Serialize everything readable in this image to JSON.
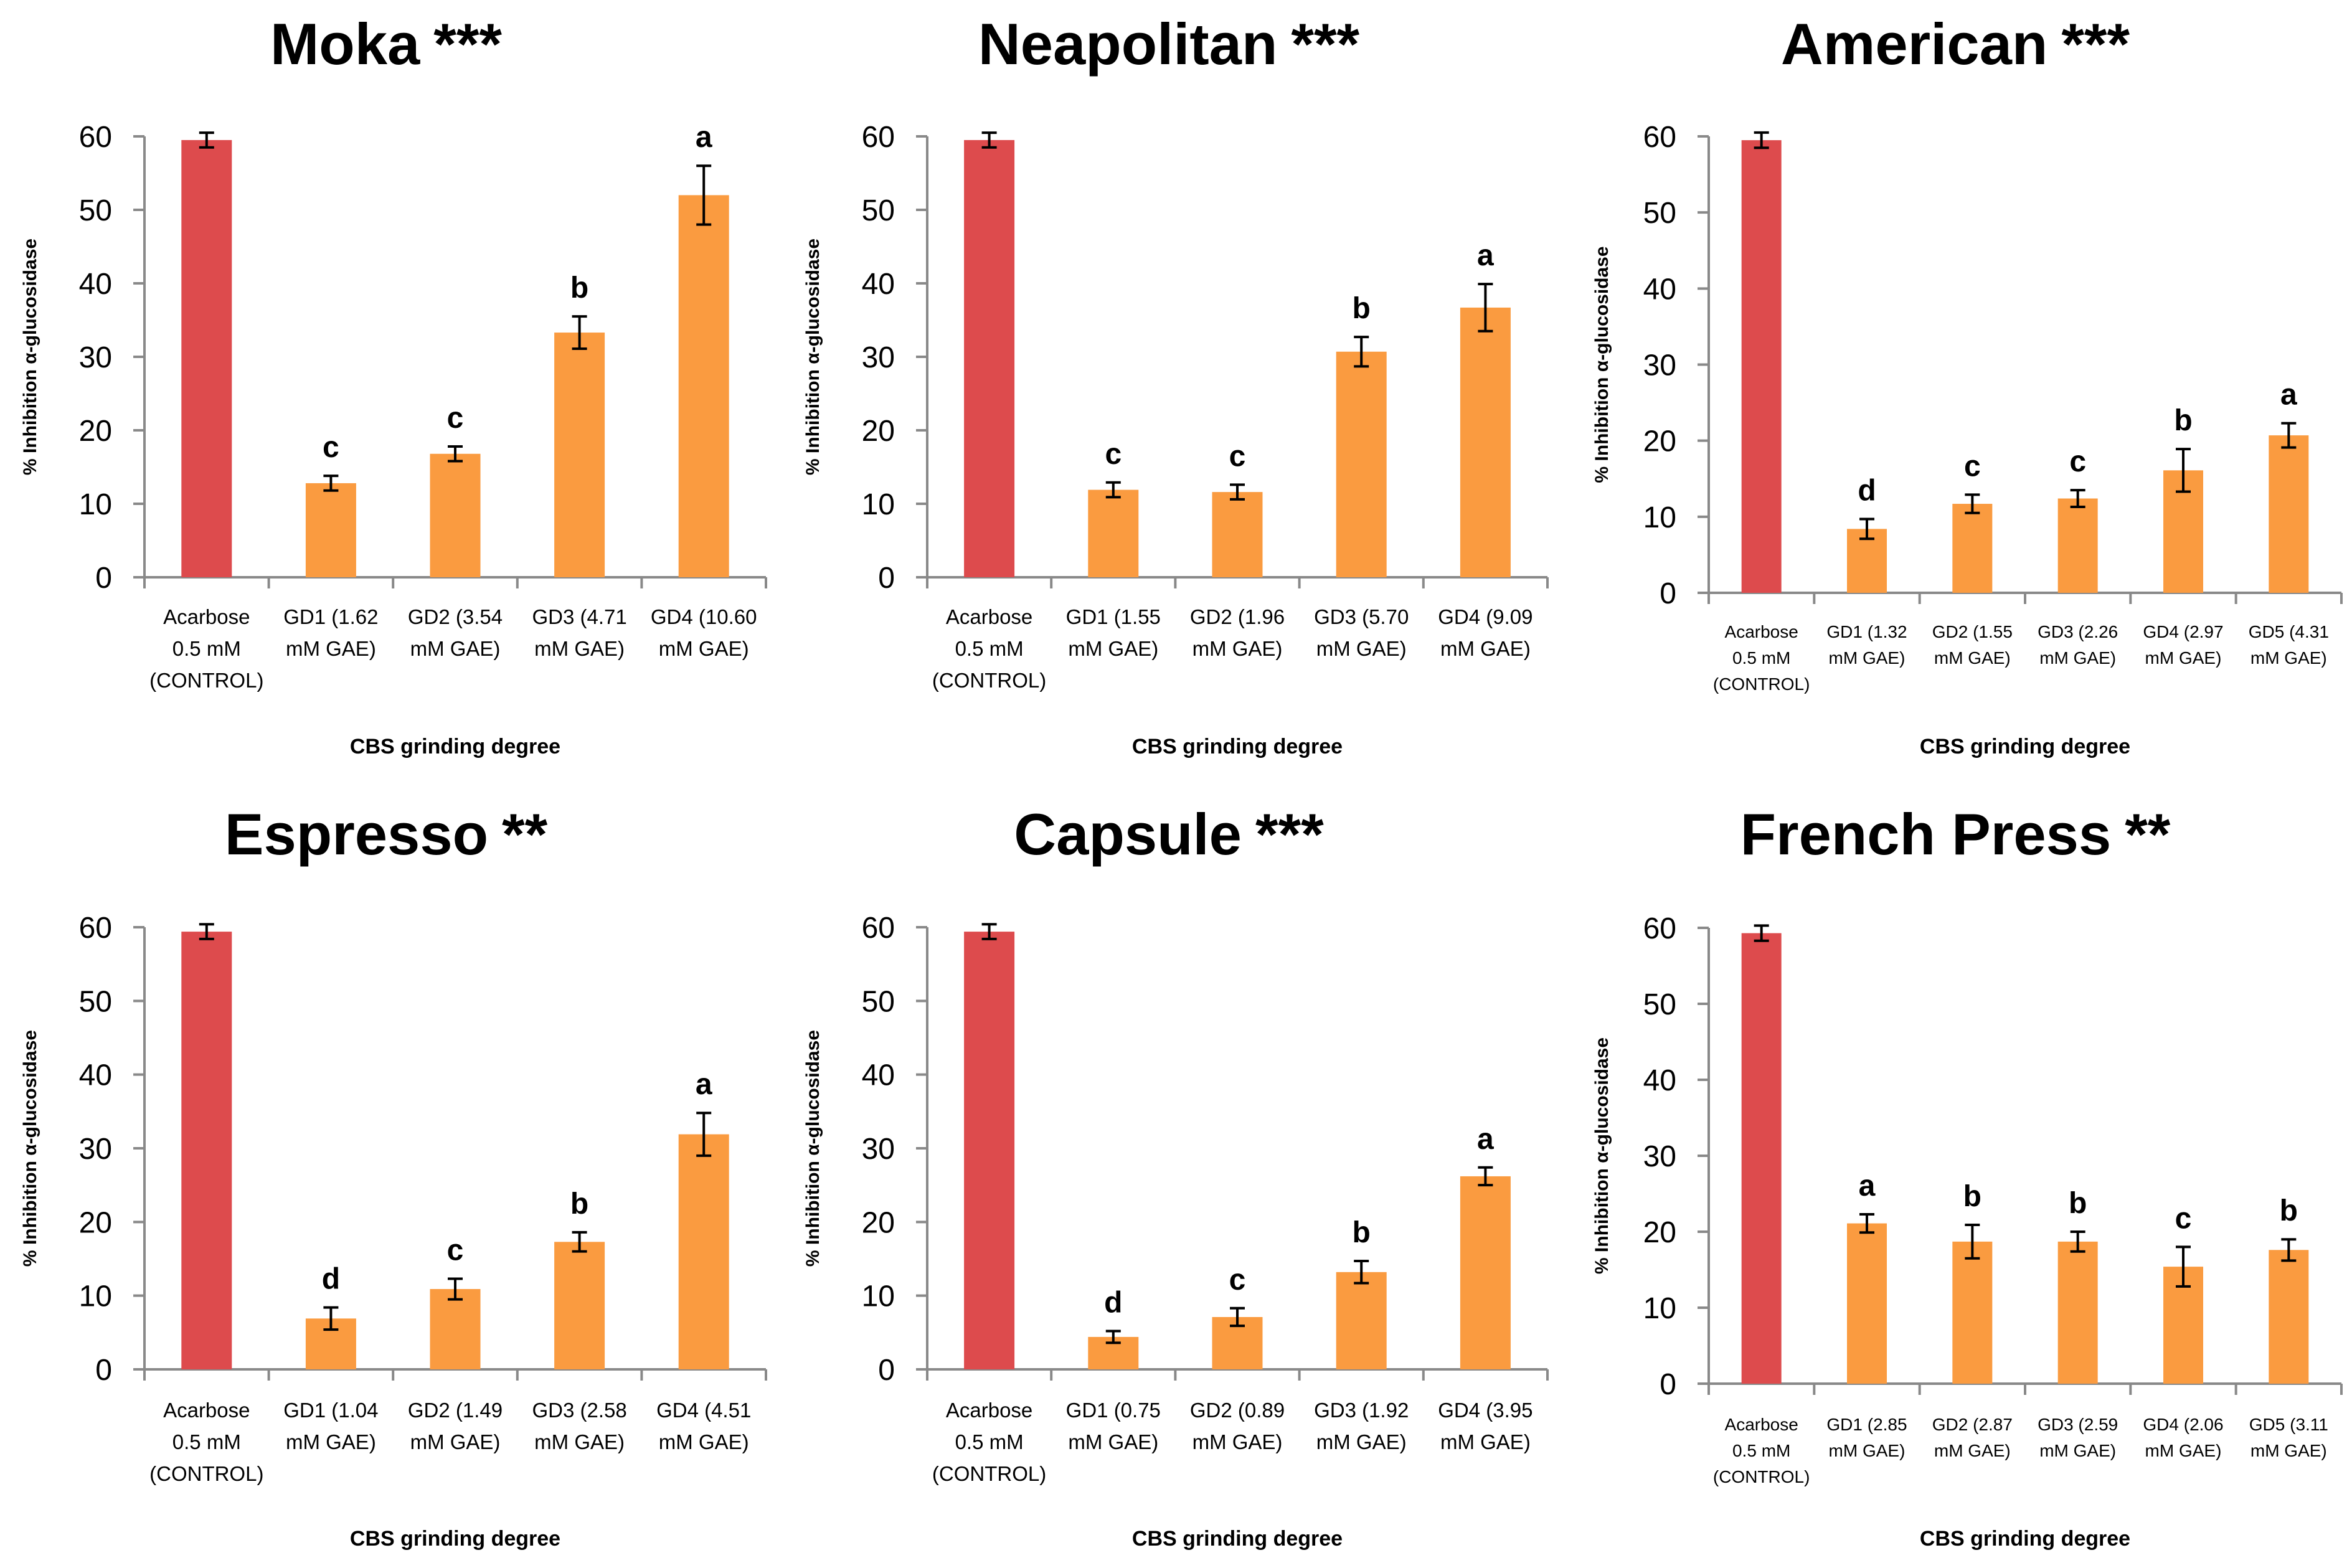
{
  "colors": {
    "control": "#dd4b4d",
    "sample": "#fa9b40",
    "axis": "#898989",
    "text": "#000000"
  },
  "chart_data": [
    {
      "type": "bar",
      "title": "Moka",
      "significance": "***",
      "xlabel": "CBS grinding  degree",
      "ylabel": "% Inhibition α-glucosidase",
      "ylim": [
        0,
        60
      ],
      "yticks": [
        0,
        10,
        20,
        30,
        40,
        50,
        60
      ],
      "categories": [
        [
          "Acarbose",
          "0.5 mM",
          "(CONTROL)"
        ],
        [
          "GD1 (1.62",
          "mM GAE)"
        ],
        [
          "GD2 (3.54",
          "mM GAE)"
        ],
        [
          "GD3 (4.71",
          "mM GAE)"
        ],
        [
          "GD4 (10.60",
          "mM GAE)"
        ]
      ],
      "values": [
        59.5,
        12.8,
        16.8,
        33.3,
        52.0
      ],
      "errors": [
        1.0,
        1.0,
        1.0,
        2.2,
        4.0
      ],
      "letters": [
        "",
        "c",
        "c",
        "b",
        "a"
      ],
      "legend": "none",
      "grid": false
    },
    {
      "type": "bar",
      "title": "Neapolitan",
      "significance": "***",
      "xlabel": "CBS grinding  degree",
      "ylabel": "% Inhibition α-glucosidase",
      "ylim": [
        0,
        60
      ],
      "yticks": [
        0,
        10,
        20,
        30,
        40,
        50,
        60
      ],
      "categories": [
        [
          "Acarbose",
          "0.5 mM",
          "(CONTROL)"
        ],
        [
          "GD1 (1.55",
          "mM GAE)"
        ],
        [
          "GD2 (1.96",
          "mM GAE)"
        ],
        [
          "GD3 (5.70",
          "mM GAE)"
        ],
        [
          "GD4 (9.09",
          "mM GAE)"
        ]
      ],
      "values": [
        59.5,
        11.9,
        11.6,
        30.7,
        36.7
      ],
      "errors": [
        1.0,
        1.0,
        1.0,
        2.0,
        3.2
      ],
      "letters": [
        "",
        "c",
        "c",
        "b",
        "a"
      ],
      "legend": "none",
      "grid": false
    },
    {
      "type": "bar",
      "title": "American",
      "significance": "***",
      "xlabel": "CBS grinding  degree",
      "ylabel": "% Inhibition α-glucosidase",
      "ylim": [
        0,
        60
      ],
      "yticks": [
        0,
        10,
        20,
        30,
        40,
        50,
        60
      ],
      "categories": [
        [
          "Acarbose",
          "0.5 mM",
          "(CONTROL)"
        ],
        [
          "GD1 (1.32",
          "mM GAE)"
        ],
        [
          "GD2 (1.55",
          "mM GAE)"
        ],
        [
          "GD3 (2.26",
          "mM GAE)"
        ],
        [
          "GD4 (2.97",
          "mM GAE)"
        ],
        [
          "GD5 (4.31",
          "mM GAE)"
        ]
      ],
      "values": [
        59.5,
        8.4,
        11.7,
        12.4,
        16.1,
        20.7
      ],
      "errors": [
        1.0,
        1.3,
        1.2,
        1.1,
        2.8,
        1.6
      ],
      "letters": [
        "",
        "d",
        "c",
        "c",
        "b",
        "a"
      ],
      "legend": "none",
      "grid": false
    },
    {
      "type": "bar",
      "title": "Espresso",
      "significance": "**",
      "xlabel": "CBS grinding  degree",
      "ylabel": "% Inhibition α-glucosidase",
      "ylim": [
        0,
        60
      ],
      "yticks": [
        0,
        10,
        20,
        30,
        40,
        50,
        60
      ],
      "categories": [
        [
          "Acarbose",
          "0.5 mM",
          "(CONTROL)"
        ],
        [
          "GD1 (1.04",
          "mM GAE)"
        ],
        [
          "GD2 (1.49",
          "mM GAE)"
        ],
        [
          "GD3 (2.58",
          "mM GAE)"
        ],
        [
          "GD4 (4.51",
          "mM GAE)"
        ]
      ],
      "values": [
        59.4,
        6.9,
        10.9,
        17.3,
        31.9
      ],
      "errors": [
        1.0,
        1.5,
        1.4,
        1.3,
        2.9
      ],
      "letters": [
        "",
        "d",
        "c",
        "b",
        "a"
      ],
      "legend": "none",
      "grid": false
    },
    {
      "type": "bar",
      "title": "Capsule",
      "significance": "***",
      "xlabel": "CBS grinding  degree",
      "ylabel": "% Inhibition α-glucosidase",
      "ylim": [
        0,
        60
      ],
      "yticks": [
        0,
        10,
        20,
        30,
        40,
        50,
        60
      ],
      "categories": [
        [
          "Acarbose",
          "0.5 mM",
          "(CONTROL)"
        ],
        [
          "GD1 (0.75",
          "mM GAE)"
        ],
        [
          "GD2 (0.89",
          "mM GAE)"
        ],
        [
          "GD3 (1.92",
          "mM GAE)"
        ],
        [
          "GD4 (3.95",
          "mM GAE)"
        ]
      ],
      "values": [
        59.4,
        4.4,
        7.1,
        13.2,
        26.2
      ],
      "errors": [
        1.0,
        0.8,
        1.2,
        1.5,
        1.2
      ],
      "letters": [
        "",
        "d",
        "c",
        "b",
        "a"
      ],
      "legend": "none",
      "grid": false
    },
    {
      "type": "bar",
      "title": "French Press",
      "significance": "**",
      "xlabel": "CBS grinding  degree",
      "ylabel": "% Inhibition α-glucosidase",
      "ylim": [
        0,
        60
      ],
      "yticks": [
        0,
        10,
        20,
        30,
        40,
        50,
        60
      ],
      "categories": [
        [
          "Acarbose",
          "0.5 mM",
          "(CONTROL)"
        ],
        [
          "GD1 (2.85",
          "mM GAE)"
        ],
        [
          "GD2 (2.87",
          "mM GAE)"
        ],
        [
          "GD3 (2.59",
          "mM GAE)"
        ],
        [
          "GD4 (2.06",
          "mM GAE)"
        ],
        [
          "GD5 (3.11",
          "mM GAE)"
        ]
      ],
      "values": [
        59.3,
        21.1,
        18.7,
        18.7,
        15.4,
        17.6
      ],
      "errors": [
        1.0,
        1.2,
        2.2,
        1.3,
        2.6,
        1.4
      ],
      "letters": [
        "",
        "a",
        "b",
        "b",
        "c",
        "b"
      ],
      "legend": "none",
      "grid": false
    }
  ]
}
